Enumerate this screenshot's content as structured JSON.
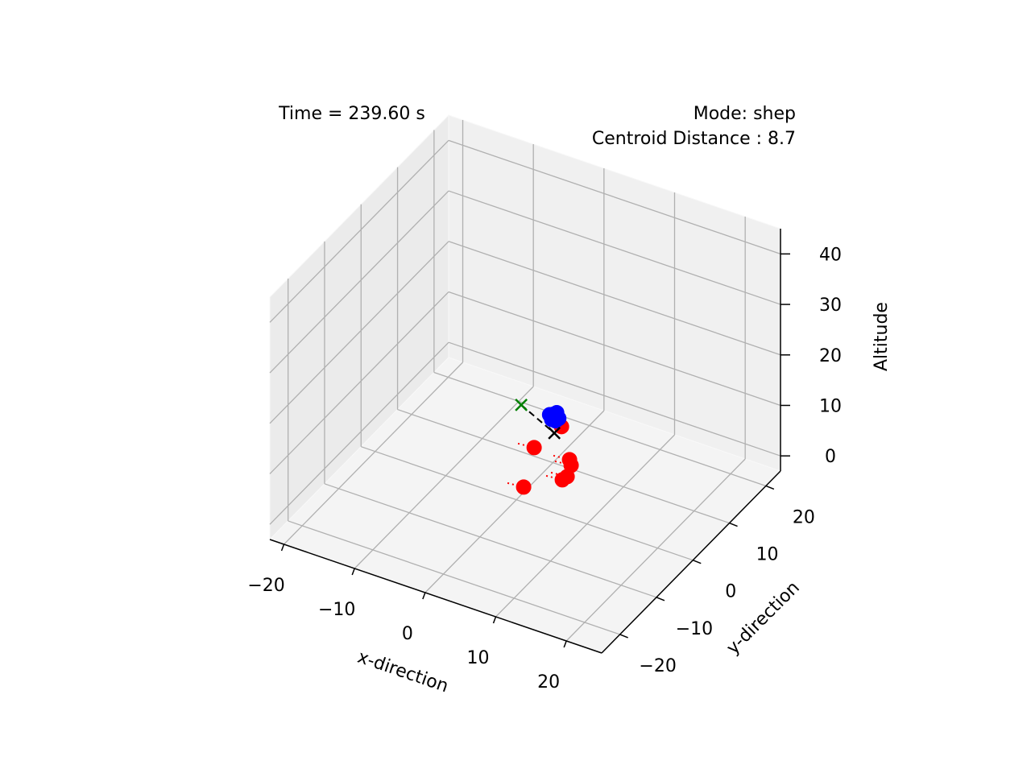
{
  "chart_data": {
    "type": "scatter3d",
    "time_label": "Time = 239.60 s",
    "mode_label": "Mode: shep",
    "centroid_label": "Centroid Distance : 8.7",
    "xlabel": "x-direction",
    "ylabel": "y-direction",
    "zlabel": "Altitude",
    "xlim": [
      -22,
      25
    ],
    "ylim": [
      -25,
      24
    ],
    "zlim": [
      -3,
      45
    ],
    "xticks": [
      {
        "value": -20,
        "label": "−20"
      },
      {
        "value": -10,
        "label": "−10"
      },
      0,
      10,
      20
    ],
    "yticks": [
      {
        "value": -20,
        "label": "−20"
      },
      {
        "value": -10,
        "label": "−10"
      },
      0,
      10,
      20
    ],
    "zticks": [
      0,
      10,
      20,
      30,
      40
    ],
    "grid": true,
    "trails": {
      "color": "#ff0000",
      "style": "dotted",
      "paths": [
        {
          "x": [
            -1.11,
            1.02
          ],
          "y": [
            -0.29,
            0.01
          ],
          "z": [
            0,
            0
          ]
        },
        {
          "x": [
            -4.11,
            -1.98
          ],
          "y": [
            8.39,
            8.69
          ],
          "z": [
            0,
            0
          ]
        },
        {
          "x": [
            2.23,
            4.36
          ],
          "y": [
            3.84,
            4.14
          ],
          "z": [
            0,
            0
          ]
        },
        {
          "x": [
            2.41,
            4.54
          ],
          "y": [
            4.82,
            5.12
          ],
          "z": [
            0,
            0
          ]
        },
        {
          "x": [
            0.9,
            3.03
          ],
          "y": [
            8.4,
            8.7
          ],
          "z": [
            0,
            0
          ]
        },
        {
          "x": [
            -3.39,
            -1.26
          ],
          "y": [
            14.5,
            14.8
          ],
          "z": [
            0,
            0
          ]
        },
        {
          "x": [
            1.66,
            3.79
          ],
          "y": [
            7.37,
            7.67
          ],
          "z": [
            0,
            0
          ]
        }
      ]
    },
    "lines": [
      {
        "color": "#000000",
        "style": "dashed",
        "x": [
          -7.79,
          -1.35
        ],
        "y": [
          16.4,
          13.0
        ],
        "z": [
          0,
          0
        ]
      }
    ],
    "series": [
      {
        "color": "#ff0000",
        "marker": "o",
        "x": [
          1.02,
          -1.98,
          4.36,
          4.54,
          3.03,
          -1.26,
          3.79
        ],
        "y": [
          0.01,
          8.69,
          4.14,
          5.12,
          8.7,
          14.8,
          7.67
        ],
        "z": [
          0,
          0,
          0,
          0,
          0,
          0,
          0
        ]
      },
      {
        "color": "#0000ff",
        "marker": "o",
        "x": [
          1.6,
          2.3,
          2.8,
          2.0,
          2.5,
          1.8
        ],
        "y": [
          6.0,
          6.6,
          6.2,
          5.8,
          5.9,
          6.5
        ],
        "z": [
          10.2,
          10.5,
          9.9,
          9.6,
          9.5,
          10.0
        ]
      },
      {
        "color": "#000000",
        "marker": "x",
        "x": [
          -1.35
        ],
        "y": [
          13.0
        ],
        "z": [
          0
        ]
      },
      {
        "color": "#008000",
        "marker": "x",
        "x": [
          -7.79
        ],
        "y": [
          16.4
        ],
        "z": [
          0
        ]
      }
    ]
  }
}
